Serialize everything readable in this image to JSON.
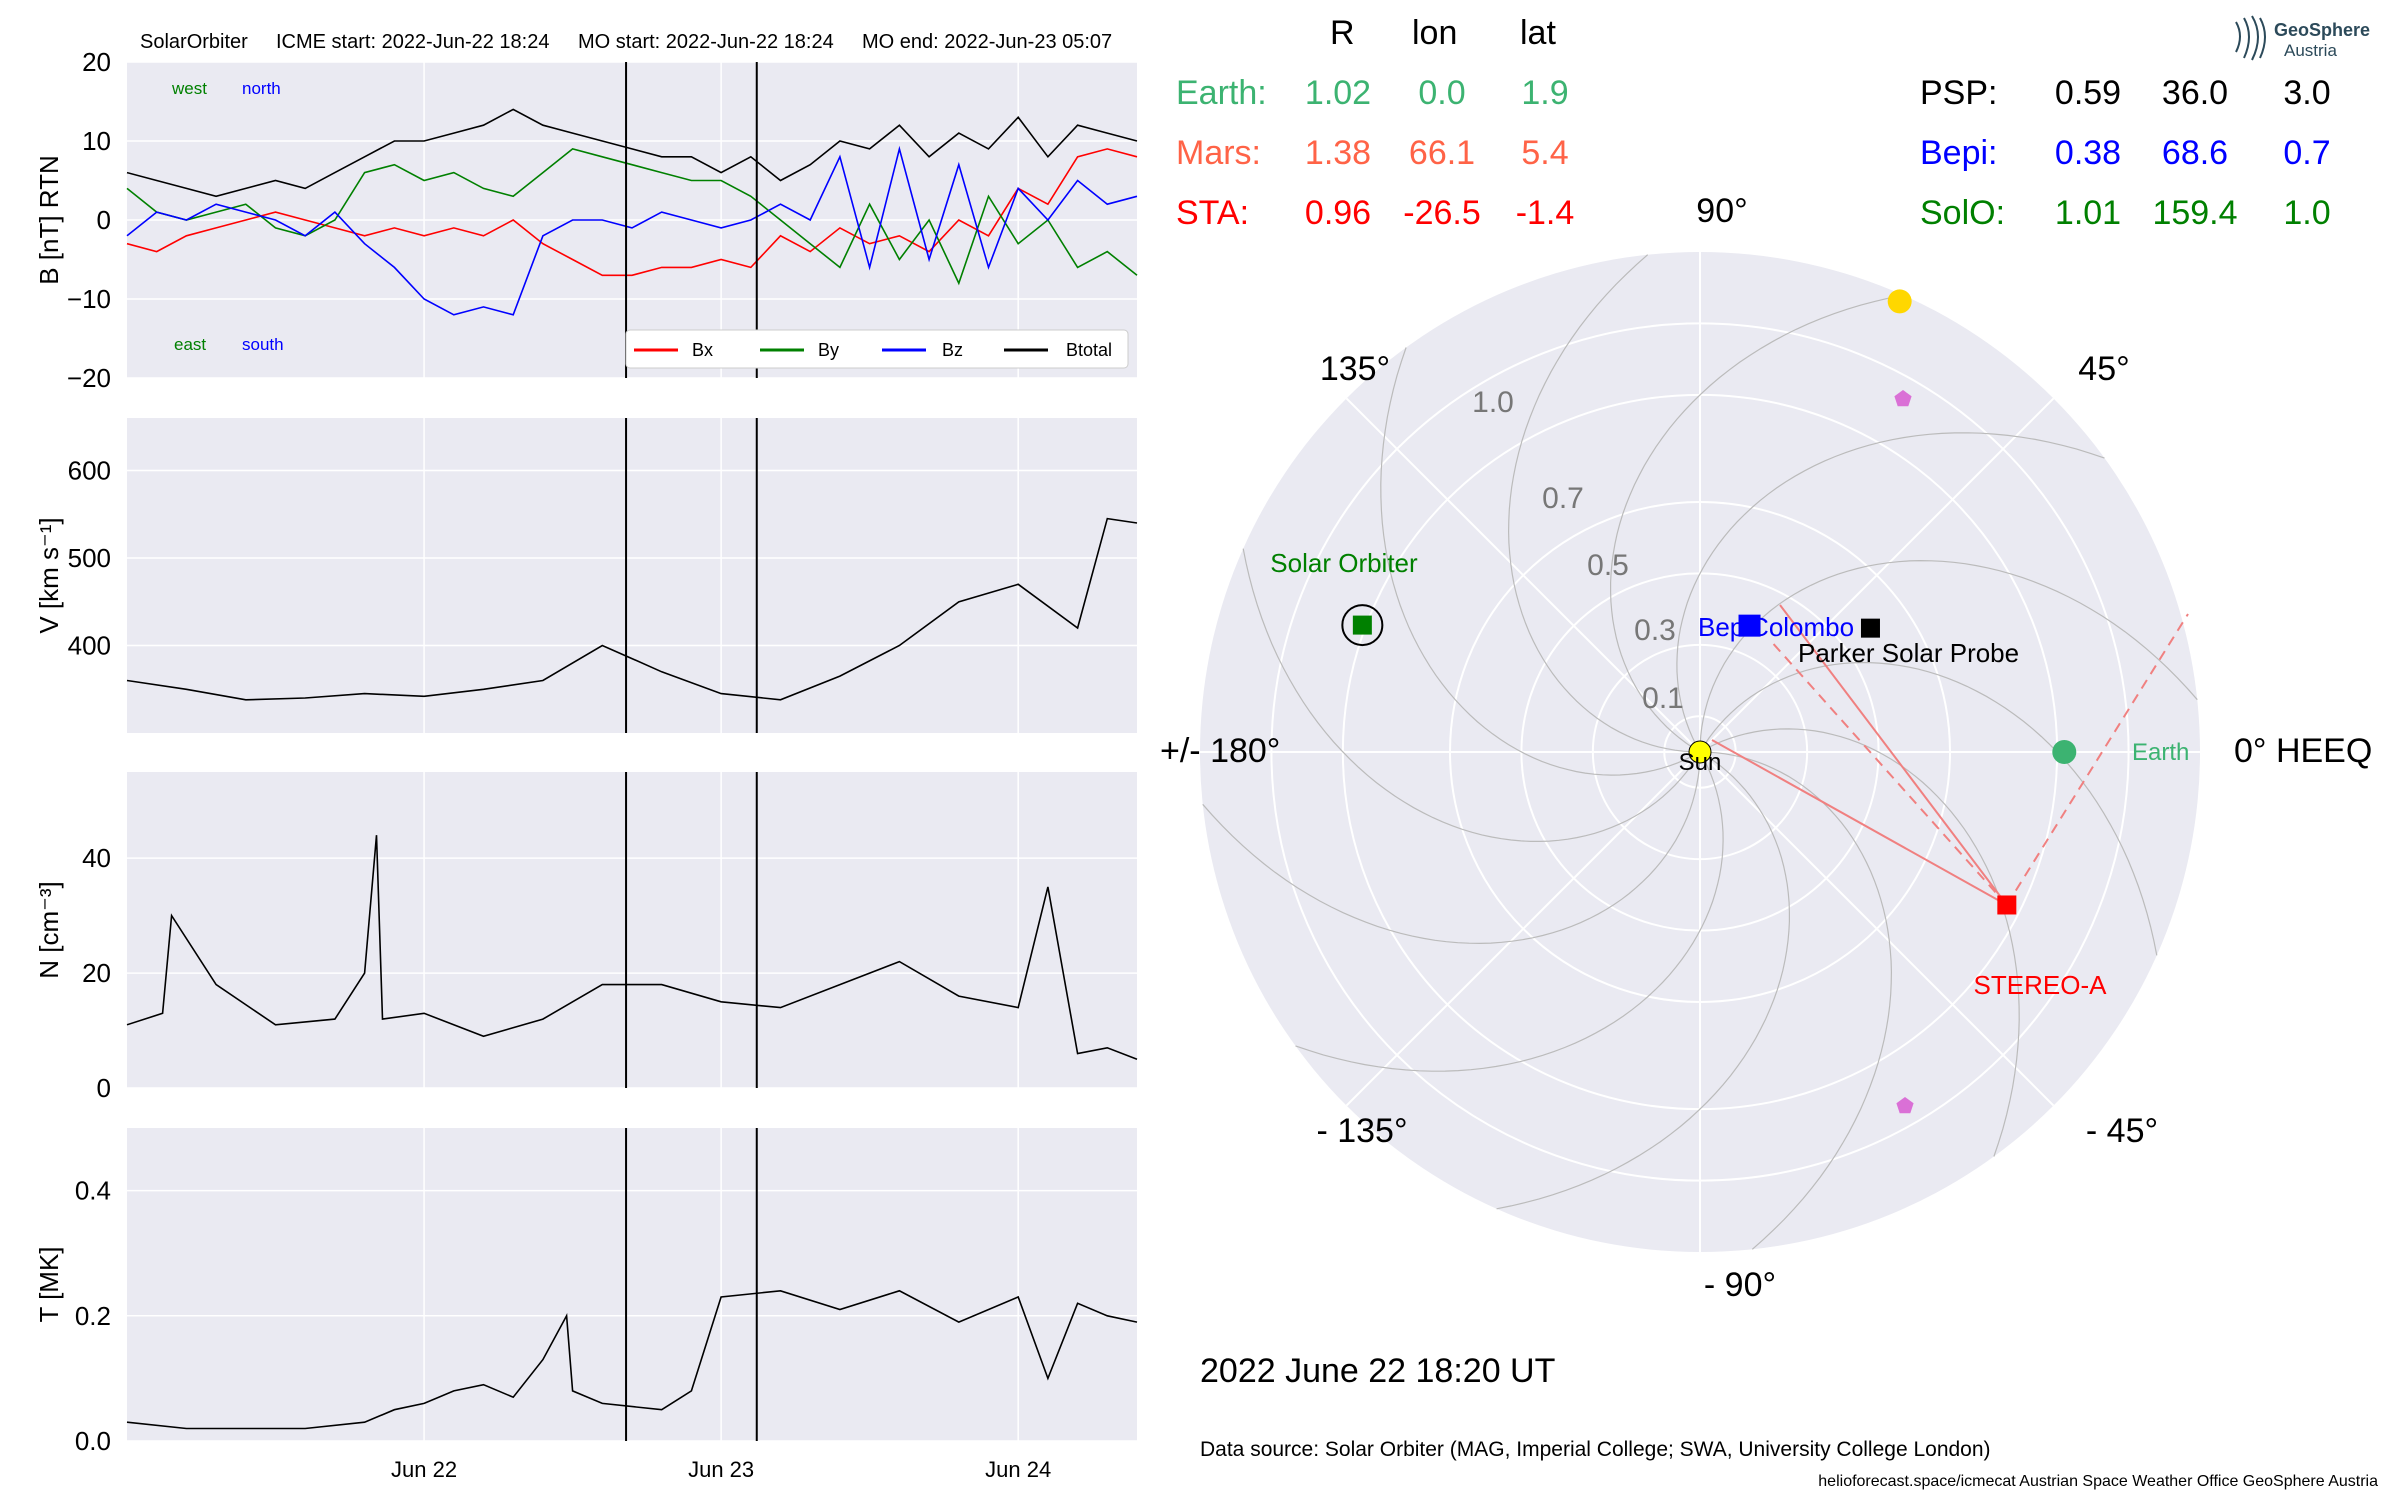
{
  "header": {
    "spacecraft": "SolarOrbiter",
    "icme_start": "ICME start: 2022-Jun-22 18:24",
    "mo_start": "MO start: 2022-Jun-22 18:24",
    "mo_end": "MO end: 2022-Jun-23 05:07"
  },
  "logo": {
    "line1": "GeoSphere",
    "line2": "Austria"
  },
  "positions": {
    "headers": [
      "R",
      "lon",
      "lat"
    ],
    "left": [
      {
        "name": "Earth:",
        "r": "1.02",
        "lon": "0.0",
        "lat": "1.9",
        "color": "#3cb371"
      },
      {
        "name": "Mars:",
        "r": "1.38",
        "lon": "66.1",
        "lat": "5.4",
        "color": "#ff6347"
      },
      {
        "name": "STA:",
        "r": "0.96",
        "lon": "-26.5",
        "lat": "-1.4",
        "color": "#ff0000"
      }
    ],
    "right": [
      {
        "name": "PSP:",
        "r": "0.59",
        "lon": "36.0",
        "lat": "3.0",
        "color": "#000000"
      },
      {
        "name": "Bepi:",
        "r": "0.38",
        "lon": "68.6",
        "lat": "0.7",
        "color": "#0000ff"
      },
      {
        "name": "SolO:",
        "r": "1.01",
        "lon": "159.4",
        "lat": "1.0",
        "color": "#008000"
      }
    ]
  },
  "polar": {
    "angle_labels": [
      "90°",
      "45°",
      "0° HEEQ",
      "- 45°",
      "- 90°",
      "- 135°",
      "+/- 180°",
      "135°"
    ],
    "radial_labels": [
      "0.1",
      "0.3",
      "0.5",
      "0.7",
      "1.0"
    ],
    "objects": [
      {
        "label": "Sun",
        "r": 0,
        "lon": 0,
        "color": "#ffff00",
        "marker": "circle"
      },
      {
        "label": "Earth",
        "r": 1.02,
        "lon": 0.0,
        "color": "#3cb371",
        "marker": "circle"
      },
      {
        "label": "",
        "r": 1.38,
        "lon": 66.1,
        "color": "#ffd700",
        "marker": "circle"
      },
      {
        "label": "STEREO-A",
        "r": 0.96,
        "lon": -26.5,
        "color": "#ff0000",
        "marker": "square"
      },
      {
        "label": "Parker Solar Probe",
        "r": 0.59,
        "lon": 36.0,
        "color": "#000000",
        "marker": "square"
      },
      {
        "label": "BepiColombo",
        "r": 0.38,
        "lon": 68.6,
        "color": "#0000ff",
        "marker": "square"
      },
      {
        "label": "Solar Orbiter",
        "r": 1.01,
        "lon": 159.4,
        "color": "#008000",
        "marker": "square"
      }
    ],
    "date": "2022 June 22  18:20 UT"
  },
  "footer": {
    "source": "Data source: Solar Orbiter (MAG, Imperial College; SWA, University College London)",
    "credits": "helioforecast.space/icmecat   Austrian Space Weather Office   GeoSphere Austria"
  },
  "chart_data": [
    {
      "type": "line",
      "ylabel": "B [nT] RTN",
      "ylim": [
        -20,
        20
      ],
      "yticks": [
        "20",
        "10",
        "0",
        "−10",
        "−20"
      ],
      "annotations": [
        "west",
        "north",
        "east",
        "south"
      ],
      "legend": [
        "Bx",
        "By",
        "Bz",
        "Btotal"
      ],
      "series": [
        {
          "name": "Bx",
          "color": "#ff0000",
          "x": [
            0,
            0.1,
            0.2,
            0.3,
            0.4,
            0.5,
            0.6,
            0.7,
            0.8,
            0.9,
            1.0,
            1.1,
            1.2,
            1.3,
            1.4,
            1.5,
            1.6,
            1.7,
            1.8,
            1.9,
            2.0,
            2.1,
            2.2,
            2.3,
            2.4,
            2.5,
            2.6,
            2.7,
            2.8,
            2.9,
            3.0,
            3.1,
            3.2,
            3.3,
            3.4
          ],
          "y": [
            -3,
            -4,
            -2,
            -1,
            0,
            1,
            0,
            -1,
            -2,
            -1,
            -2,
            -1,
            -2,
            0,
            -3,
            -5,
            -7,
            -7,
            -6,
            -6,
            -5,
            -6,
            -2,
            -4,
            -1,
            -3,
            -2,
            -4,
            0,
            -2,
            4,
            2,
            8,
            9,
            8
          ]
        },
        {
          "name": "By",
          "color": "#008000",
          "x": [
            0,
            0.1,
            0.2,
            0.3,
            0.4,
            0.5,
            0.6,
            0.7,
            0.8,
            0.9,
            1.0,
            1.1,
            1.2,
            1.3,
            1.4,
            1.5,
            1.6,
            1.7,
            1.8,
            1.9,
            2.0,
            2.1,
            2.2,
            2.3,
            2.4,
            2.5,
            2.6,
            2.7,
            2.8,
            2.9,
            3.0,
            3.1,
            3.2,
            3.3,
            3.4
          ],
          "y": [
            4,
            1,
            0,
            1,
            2,
            -1,
            -2,
            0,
            6,
            7,
            5,
            6,
            4,
            3,
            6,
            9,
            8,
            7,
            6,
            5,
            5,
            3,
            0,
            -3,
            -6,
            2,
            -5,
            0,
            -8,
            3,
            -3,
            0,
            -6,
            -4,
            -7
          ]
        },
        {
          "name": "Bz",
          "color": "#0000ff",
          "x": [
            0,
            0.1,
            0.2,
            0.3,
            0.4,
            0.5,
            0.6,
            0.7,
            0.8,
            0.9,
            1.0,
            1.1,
            1.2,
            1.3,
            1.4,
            1.5,
            1.6,
            1.7,
            1.8,
            1.9,
            2.0,
            2.1,
            2.2,
            2.3,
            2.4,
            2.5,
            2.6,
            2.7,
            2.8,
            2.9,
            3.0,
            3.1,
            3.2,
            3.3,
            3.4
          ],
          "y": [
            -2,
            1,
            0,
            2,
            1,
            0,
            -2,
            1,
            -3,
            -6,
            -10,
            -12,
            -11,
            -12,
            -2,
            0,
            0,
            -1,
            1,
            0,
            -1,
            0,
            2,
            0,
            8,
            -6,
            9,
            -5,
            7,
            -6,
            4,
            0,
            5,
            2,
            3
          ]
        },
        {
          "name": "Btotal",
          "color": "#000000",
          "x": [
            0,
            0.1,
            0.2,
            0.3,
            0.4,
            0.5,
            0.6,
            0.7,
            0.8,
            0.9,
            1.0,
            1.1,
            1.2,
            1.3,
            1.4,
            1.5,
            1.6,
            1.7,
            1.8,
            1.9,
            2.0,
            2.1,
            2.2,
            2.3,
            2.4,
            2.5,
            2.6,
            2.7,
            2.8,
            2.9,
            3.0,
            3.1,
            3.2,
            3.3,
            3.4
          ],
          "y": [
            6,
            5,
            4,
            3,
            4,
            5,
            4,
            6,
            8,
            10,
            10,
            11,
            12,
            14,
            12,
            11,
            10,
            9,
            8,
            8,
            6,
            8,
            5,
            7,
            10,
            9,
            12,
            8,
            11,
            9,
            13,
            8,
            12,
            11,
            10
          ]
        }
      ]
    },
    {
      "type": "line",
      "ylabel": "V [km s⁻¹]",
      "ylim": [
        300,
        660
      ],
      "yticks": [
        "600",
        "500",
        "400"
      ],
      "series": [
        {
          "name": "",
          "color": "#000000",
          "x": [
            0,
            0.2,
            0.4,
            0.6,
            0.8,
            1.0,
            1.2,
            1.4,
            1.6,
            1.7,
            1.8,
            2.0,
            2.2,
            2.4,
            2.6,
            2.8,
            3.0,
            3.2,
            3.3,
            3.4
          ],
          "y": [
            360,
            350,
            338,
            340,
            345,
            342,
            350,
            360,
            400,
            385,
            370,
            345,
            338,
            365,
            400,
            450,
            470,
            420,
            545,
            540
          ]
        }
      ]
    },
    {
      "type": "line",
      "ylabel": "N [cm⁻³]",
      "ylim": [
        0,
        55
      ],
      "yticks": [
        "40",
        "20",
        "0"
      ],
      "series": [
        {
          "name": "",
          "color": "#000000",
          "x": [
            0,
            0.12,
            0.15,
            0.3,
            0.5,
            0.7,
            0.8,
            0.84,
            0.86,
            1.0,
            1.2,
            1.4,
            1.5,
            1.6,
            1.8,
            2.0,
            2.2,
            2.4,
            2.6,
            2.8,
            3.0,
            3.1,
            3.2,
            3.3,
            3.4
          ],
          "y": [
            11,
            13,
            30,
            18,
            11,
            12,
            20,
            44,
            12,
            13,
            9,
            12,
            15,
            18,
            18,
            15,
            14,
            18,
            22,
            16,
            14,
            35,
            6,
            7,
            5
          ]
        }
      ]
    },
    {
      "type": "line",
      "ylabel": "T [MK]",
      "ylim": [
        0,
        0.5
      ],
      "yticks": [
        "0.4",
        "0.2",
        "0.0"
      ],
      "xticks": [
        "Jun 22",
        "Jun 23",
        "Jun 24"
      ],
      "series": [
        {
          "name": "",
          "color": "#000000",
          "x": [
            0,
            0.2,
            0.4,
            0.6,
            0.8,
            0.9,
            1.0,
            1.1,
            1.2,
            1.3,
            1.4,
            1.48,
            1.5,
            1.6,
            1.8,
            1.9,
            2.0,
            2.2,
            2.4,
            2.6,
            2.8,
            3.0,
            3.1,
            3.2,
            3.3,
            3.4
          ],
          "y": [
            0.03,
            0.02,
            0.02,
            0.02,
            0.03,
            0.05,
            0.06,
            0.08,
            0.09,
            0.07,
            0.13,
            0.2,
            0.08,
            0.06,
            0.05,
            0.08,
            0.23,
            0.24,
            0.21,
            0.24,
            0.19,
            0.23,
            0.1,
            0.22,
            0.2,
            0.19
          ]
        }
      ]
    }
  ]
}
